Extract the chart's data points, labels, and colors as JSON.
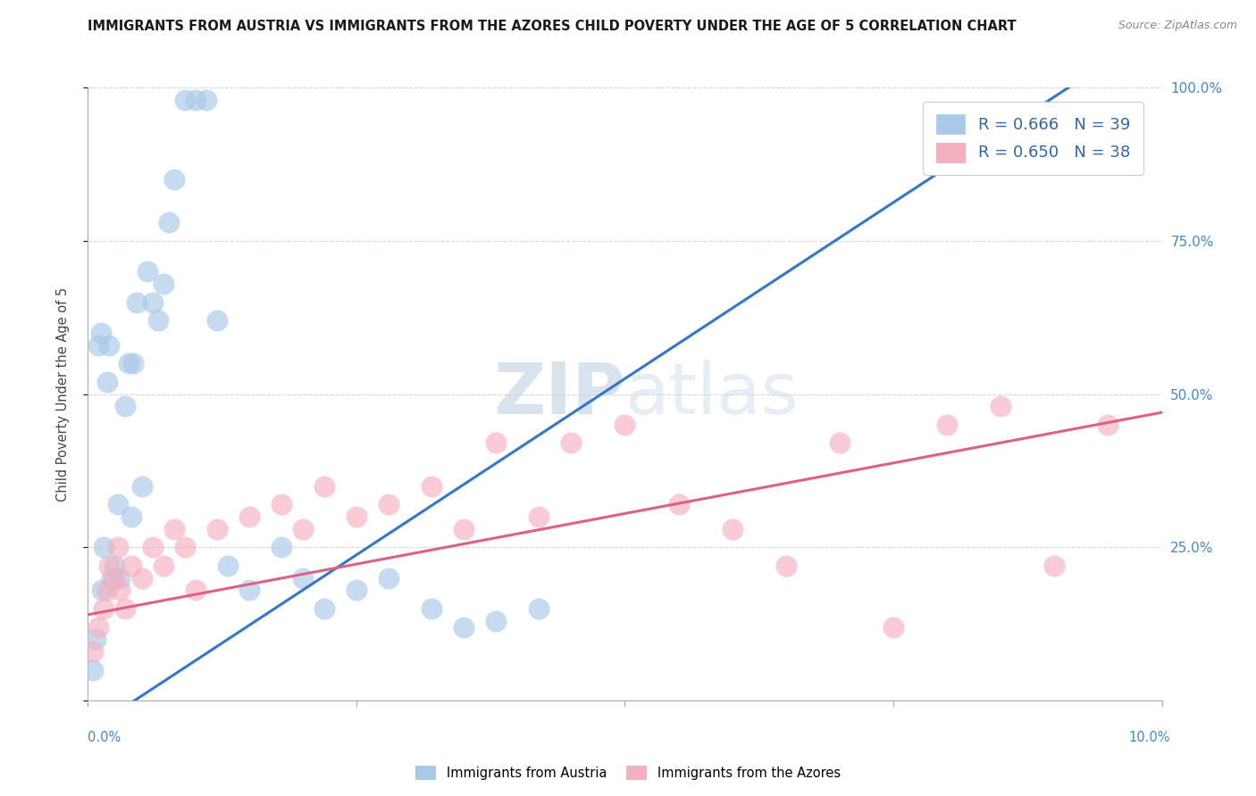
{
  "title": "IMMIGRANTS FROM AUSTRIA VS IMMIGRANTS FROM THE AZORES CHILD POVERTY UNDER THE AGE OF 5 CORRELATION CHART",
  "source": "Source: ZipAtlas.com",
  "ylabel": "Child Poverty Under the Age of 5",
  "right_yticklabels": [
    "",
    "25.0%",
    "50.0%",
    "75.0%",
    "100.0%"
  ],
  "legend_austria": "R = 0.666   N = 39",
  "legend_azores": "R = 0.650   N = 38",
  "austria_color": "#aac8e8",
  "azores_color": "#f5b0c0",
  "austria_line_color": "#3377cc",
  "azores_line_color": "#e06080",
  "watermark_color": "#d5e5f0",
  "background_color": "#ffffff",
  "austria_x": [
    0.05,
    0.07,
    0.1,
    0.12,
    0.13,
    0.15,
    0.18,
    0.2,
    0.22,
    0.25,
    0.28,
    0.3,
    0.35,
    0.38,
    0.4,
    0.42,
    0.45,
    0.5,
    0.55,
    0.6,
    0.65,
    0.7,
    0.75,
    0.8,
    0.9,
    1.0,
    1.1,
    1.2,
    1.3,
    1.5,
    1.8,
    2.0,
    2.2,
    2.5,
    2.8,
    3.2,
    3.5,
    3.8,
    4.2
  ],
  "austria_y": [
    0.05,
    0.1,
    0.58,
    0.6,
    0.18,
    0.25,
    0.52,
    0.58,
    0.2,
    0.22,
    0.32,
    0.2,
    0.48,
    0.55,
    0.3,
    0.55,
    0.65,
    0.35,
    0.7,
    0.65,
    0.62,
    0.68,
    0.78,
    0.85,
    0.98,
    0.98,
    0.98,
    0.62,
    0.22,
    0.18,
    0.25,
    0.2,
    0.15,
    0.18,
    0.2,
    0.15,
    0.12,
    0.13,
    0.15
  ],
  "azores_x": [
    0.05,
    0.1,
    0.15,
    0.18,
    0.2,
    0.25,
    0.28,
    0.3,
    0.35,
    0.4,
    0.5,
    0.6,
    0.7,
    0.8,
    0.9,
    1.0,
    1.2,
    1.5,
    1.8,
    2.0,
    2.2,
    2.5,
    2.8,
    3.2,
    3.5,
    3.8,
    4.2,
    4.5,
    5.0,
    5.5,
    6.0,
    6.5,
    7.0,
    7.5,
    8.0,
    8.5,
    9.0,
    9.5
  ],
  "azores_y": [
    0.08,
    0.12,
    0.15,
    0.18,
    0.22,
    0.2,
    0.25,
    0.18,
    0.15,
    0.22,
    0.2,
    0.25,
    0.22,
    0.28,
    0.25,
    0.18,
    0.28,
    0.3,
    0.32,
    0.28,
    0.35,
    0.3,
    0.32,
    0.35,
    0.28,
    0.42,
    0.3,
    0.42,
    0.45,
    0.32,
    0.28,
    0.22,
    0.42,
    0.12,
    0.45,
    0.48,
    0.22,
    0.45
  ],
  "austria_line": [
    0.0,
    10.0,
    -0.05,
    1.1
  ],
  "azores_line": [
    0.0,
    10.0,
    0.14,
    0.47
  ],
  "xlim": [
    0,
    10
  ],
  "ylim": [
    0,
    1.0
  ],
  "xticks": [
    0,
    2.5,
    5.0,
    7.5,
    10.0
  ],
  "yticks": [
    0,
    0.25,
    0.5,
    0.75,
    1.0
  ]
}
